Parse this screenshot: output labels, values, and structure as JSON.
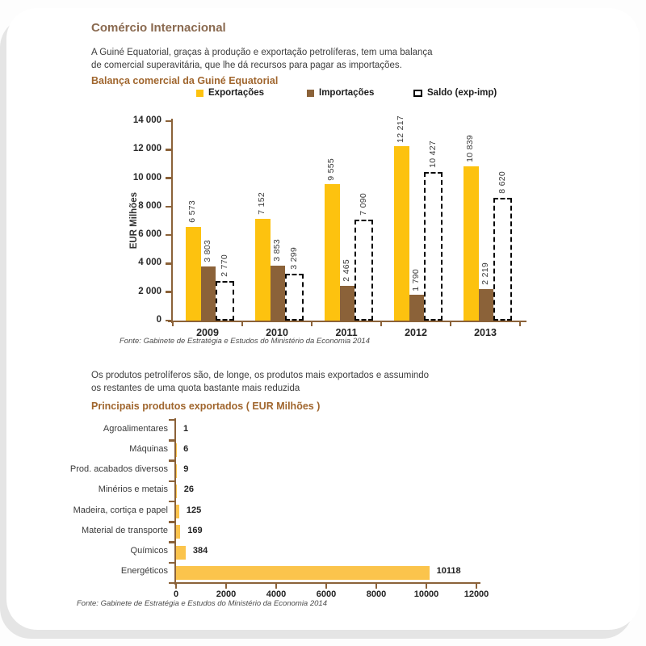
{
  "header": {
    "title": "Comércio Internacional",
    "intro_line1": "A Guiné Equatorial, graças à produção e exportação petrolíferas, tem uma balança",
    "intro_line2": "de comercial superavitária, que lhe dá recursos para pagar as importações."
  },
  "section2": {
    "intro_line1": "Os produtos petrolíferos são, de longe, os produtos mais exportados e assumindo",
    "intro_line2": "os restantes de uma quota bastante mais reduzida"
  },
  "colors": {
    "exports_yellow": "#FDC20F",
    "imports_brown": "#8B6239",
    "axis_brown": "#8B6239",
    "products_orange": "#FBC44C",
    "title_brown": "#8A6A50",
    "subtitle_rust": "#A0662E"
  },
  "chart_data": [
    {
      "type": "bar",
      "title": "Balança comercial da Guiné Equatorial",
      "ylabel": "EUR Milhões",
      "ylim": [
        0,
        14000
      ],
      "ytick_labels": [
        "14 000",
        "12 000",
        "10 000",
        "8 000",
        "6 000",
        "4 000",
        "2 000",
        "0"
      ],
      "categories": [
        "2009",
        "2010",
        "2011",
        "2012",
        "2013"
      ],
      "legend_position": "top",
      "grid": false,
      "series": [
        {
          "name": "Exportações",
          "style": "solid",
          "color": "#FDC20F",
          "values": [
            6573,
            7152,
            9555,
            12217,
            10839
          ],
          "value_labels": [
            "6 573",
            "7 152",
            "9 555",
            "12 217",
            "10 839"
          ]
        },
        {
          "name": "Importações",
          "style": "solid",
          "color": "#8B6239",
          "values": [
            3803,
            3853,
            2465,
            1790,
            2219
          ],
          "value_labels": [
            "3 803",
            "3 853",
            "2 465",
            "1 790",
            "2 219"
          ]
        },
        {
          "name": "Saldo (exp-imp)",
          "style": "dashed-outline",
          "color": "#000000",
          "values": [
            2770,
            3299,
            7090,
            10427,
            8620
          ],
          "value_labels": [
            "2 770",
            "3 299",
            "7 090",
            "10 427",
            "8 620"
          ]
        }
      ],
      "source": "Fonte: Gabinete de Estratégia e Estudos do Ministério da Economia 2014"
    },
    {
      "type": "bar",
      "orientation": "horizontal",
      "title": "Principais produtos exportados ( EUR Milhões )",
      "categories": [
        "Agroalimentares",
        "Máquinas",
        "Prod. acabados diversos",
        "Minérios e metais",
        "Madeira, cortiça e papel",
        "Material de transporte",
        "Químicos",
        "Energéticos"
      ],
      "values": [
        1,
        6,
        9,
        26,
        125,
        169,
        384,
        10118
      ],
      "value_labels": [
        "1",
        "6",
        "9",
        "26",
        "125",
        "169",
        "384",
        "10118"
      ],
      "xlim": [
        0,
        12000
      ],
      "xtick_labels": [
        "0",
        "2000",
        "4000",
        "6000",
        "8000",
        "10000",
        "12000"
      ],
      "bar_color": "#FBC44C",
      "grid": false,
      "source": "Fonte: Gabinete de Estratégia e Estudos do Ministério da Economia 2014"
    }
  ]
}
